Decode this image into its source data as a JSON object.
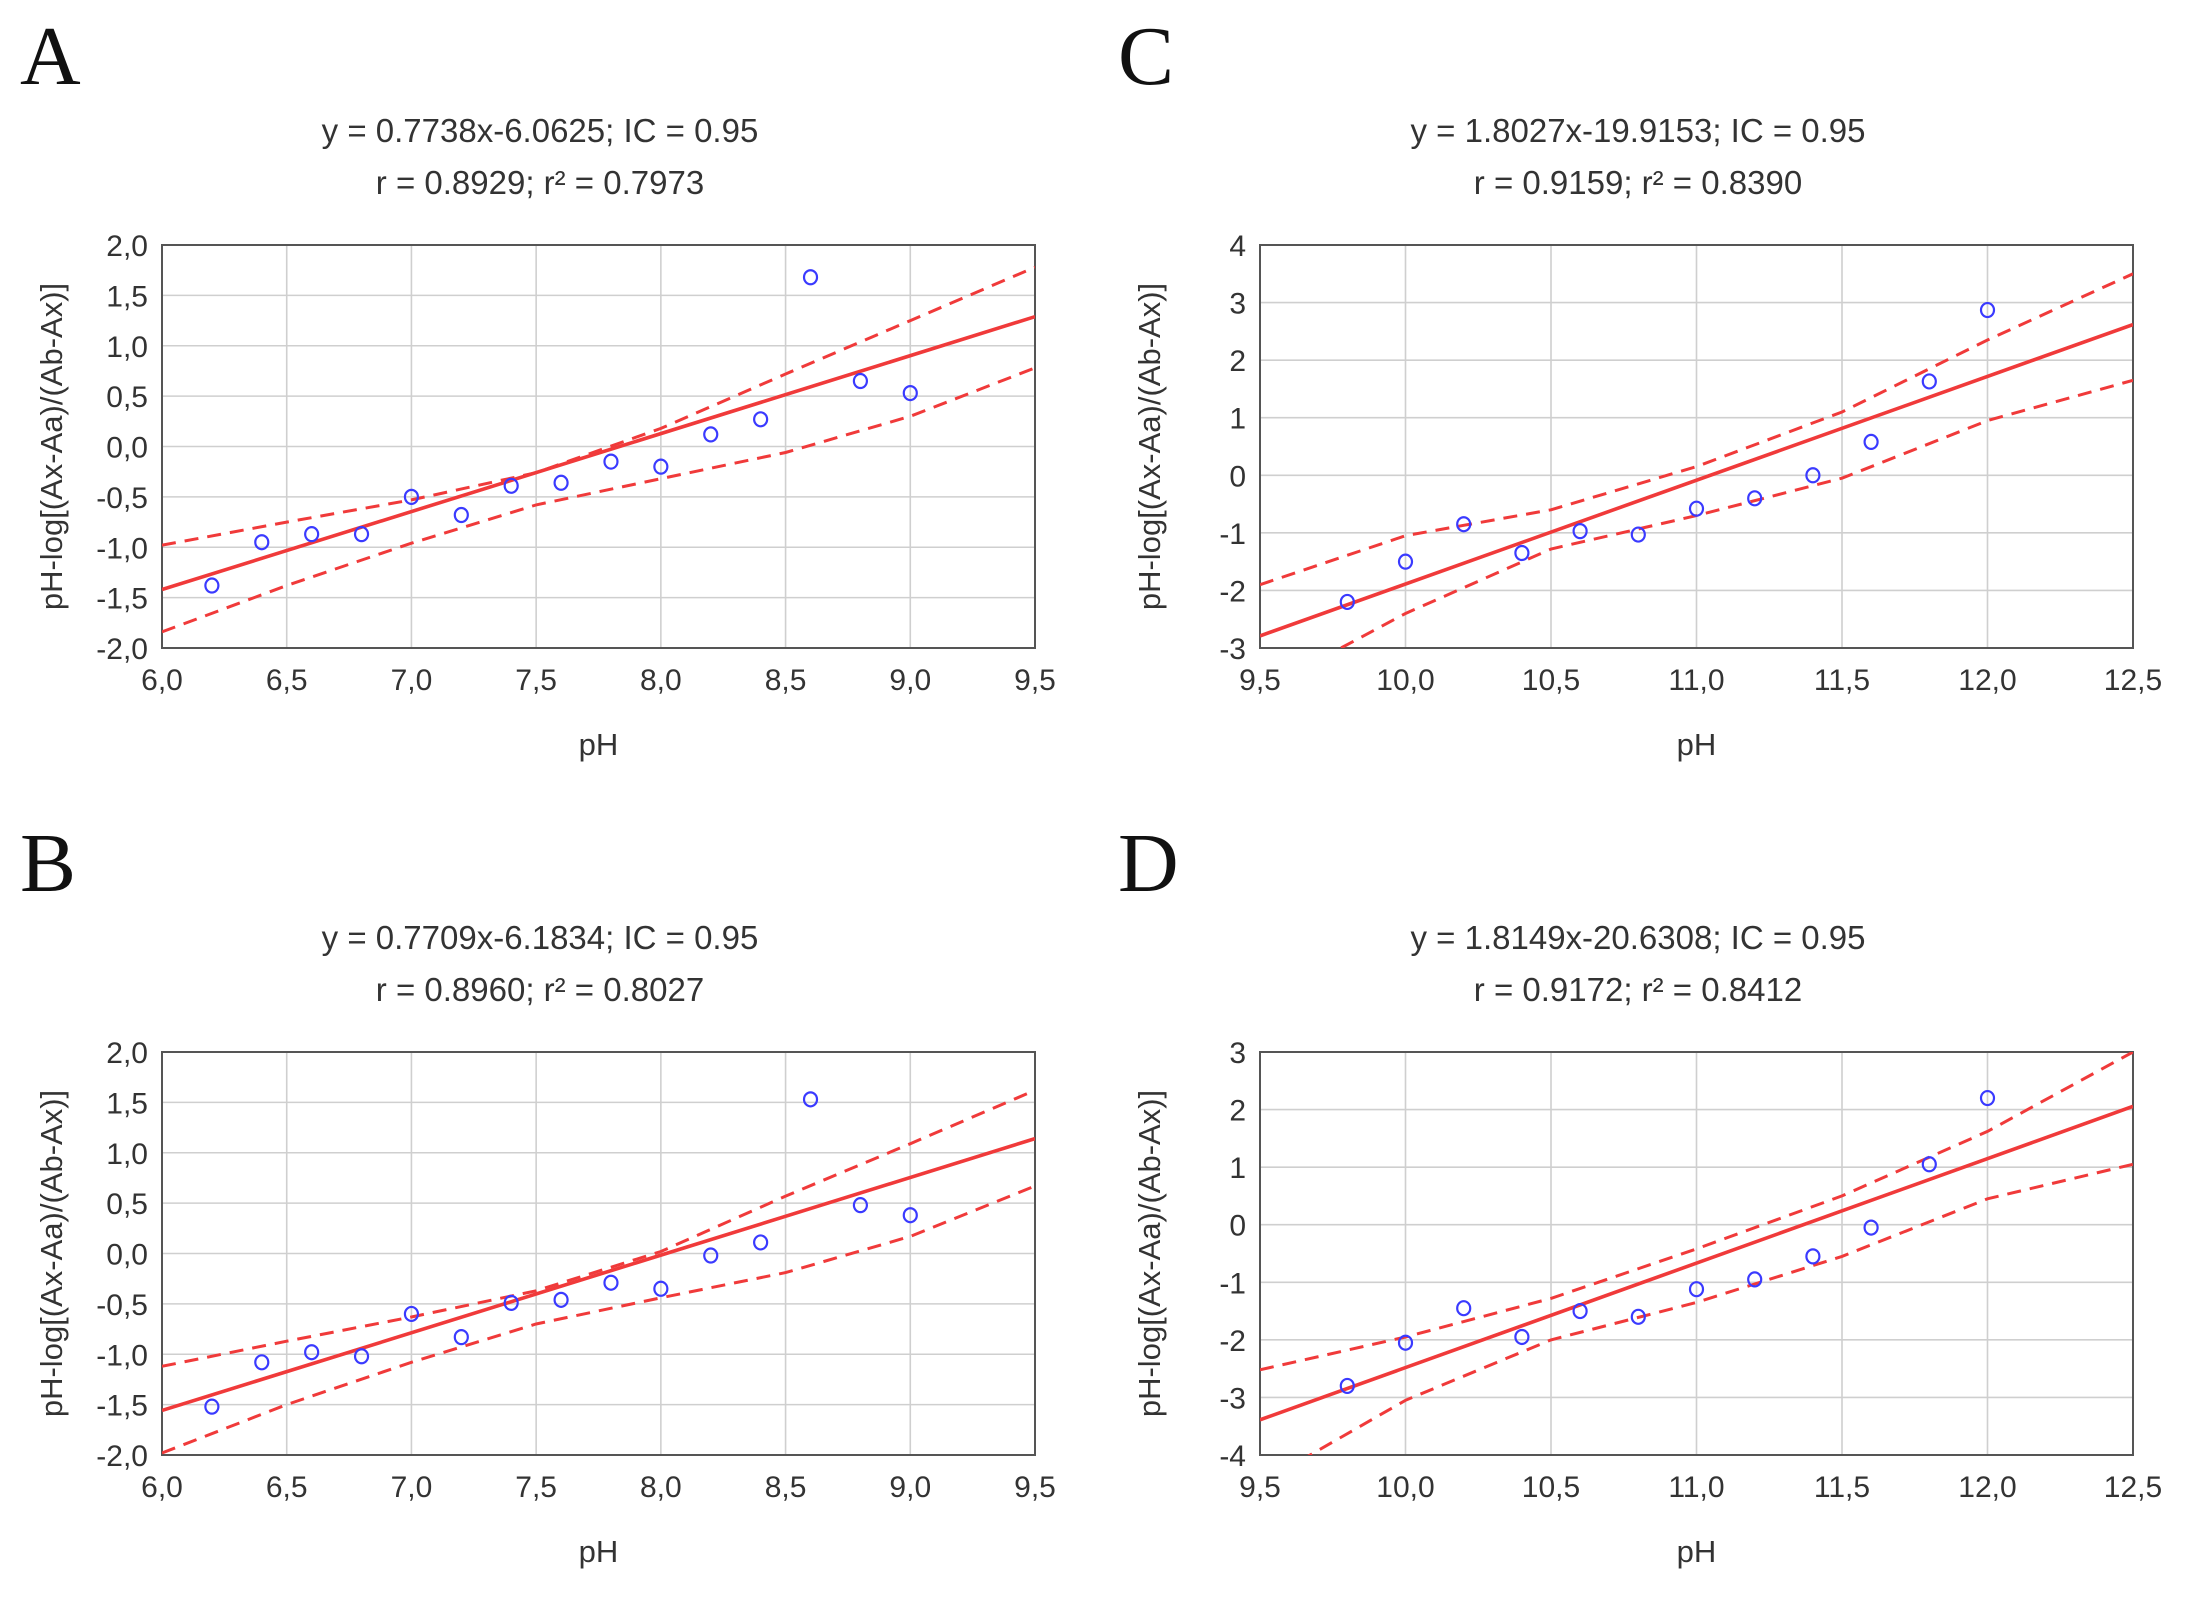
{
  "chart_data": [
    {
      "panel": "A",
      "type": "scatter",
      "title_line1": "y = 0.7738x-6.0625; IC = 0.95",
      "title_line2": "r = 0.8929; r² = 0.7973",
      "xlabel": "pH",
      "ylabel": "pH-log[(Ax-Aa)/(Ab-Ax)]",
      "xlim": [
        6.0,
        9.5
      ],
      "ylim": [
        -2.0,
        2.0
      ],
      "xticks": [
        "6,0",
        "6,5",
        "7,0",
        "7,5",
        "8,0",
        "8,5",
        "9,0",
        "9,5"
      ],
      "yticks": [
        "2,0",
        "1,5",
        "1,0",
        "0,5",
        "0,0",
        "-0,5",
        "-1,0",
        "-1,5",
        "-2,0"
      ],
      "x": [
        6.2,
        6.4,
        6.6,
        6.8,
        7.0,
        7.2,
        7.4,
        7.6,
        7.8,
        8.0,
        8.2,
        8.4,
        8.6,
        8.8,
        9.0
      ],
      "y": [
        -1.38,
        -0.95,
        -0.87,
        -0.87,
        -0.5,
        -0.68,
        -0.39,
        -0.36,
        -0.15,
        -0.2,
        0.12,
        0.27,
        1.68,
        0.65,
        0.53
      ],
      "fit": {
        "slope": 0.7738,
        "intercept": -6.0625
      },
      "ci_upper": [
        [
          6.0,
          -0.98
        ],
        [
          6.5,
          -0.75
        ],
        [
          7.0,
          -0.53
        ],
        [
          7.5,
          -0.26
        ],
        [
          8.0,
          0.18
        ],
        [
          8.5,
          0.72
        ],
        [
          9.0,
          1.25
        ],
        [
          9.5,
          1.78
        ]
      ],
      "ci_lower": [
        [
          6.0,
          -1.84
        ],
        [
          6.5,
          -1.38
        ],
        [
          7.0,
          -0.96
        ],
        [
          7.5,
          -0.58
        ],
        [
          8.0,
          -0.32
        ],
        [
          8.5,
          -0.06
        ],
        [
          9.0,
          0.3
        ],
        [
          9.5,
          0.78
        ]
      ]
    },
    {
      "panel": "C",
      "type": "scatter",
      "title_line1": "y = 1.8027x-19.9153; IC = 0.95",
      "title_line2": "r = 0.9159; r² = 0.8390",
      "xlabel": "pH",
      "ylabel": "pH-log[(Ax-Aa)/(Ab-Ax)]",
      "xlim": [
        9.5,
        12.5
      ],
      "ylim": [
        -3,
        4
      ],
      "xticks": [
        "9,5",
        "10,0",
        "10,5",
        "11,0",
        "11,5",
        "12,0",
        "12,5"
      ],
      "yticks": [
        "4",
        "3",
        "2",
        "1",
        "0",
        "-1",
        "-2",
        "-3"
      ],
      "x": [
        9.8,
        10.0,
        10.2,
        10.4,
        10.6,
        10.8,
        11.0,
        11.2,
        11.4,
        11.6,
        11.8,
        12.0
      ],
      "y": [
        -2.2,
        -1.5,
        -0.85,
        -1.35,
        -0.97,
        -1.03,
        -0.58,
        -0.4,
        0.0,
        0.58,
        1.63,
        2.87
      ],
      "fit": {
        "slope": 1.8027,
        "intercept": -19.9153
      },
      "ci_upper": [
        [
          9.5,
          -1.9
        ],
        [
          10.0,
          -1.05
        ],
        [
          10.5,
          -0.6
        ],
        [
          11.0,
          0.15
        ],
        [
          11.5,
          1.1
        ],
        [
          12.0,
          2.35
        ],
        [
          12.5,
          3.5
        ]
      ],
      "ci_lower": [
        [
          9.5,
          -3.75
        ],
        [
          10.0,
          -2.4
        ],
        [
          10.5,
          -1.28
        ],
        [
          11.0,
          -0.7
        ],
        [
          11.5,
          -0.05
        ],
        [
          12.0,
          0.95
        ],
        [
          12.5,
          1.65
        ]
      ]
    },
    {
      "panel": "B",
      "type": "scatter",
      "title_line1": "y = 0.7709x-6.1834; IC = 0.95",
      "title_line2": "r = 0.8960; r² = 0.8027",
      "xlabel": "pH",
      "ylabel": "pH-log[(Ax-Aa)/(Ab-Ax)]",
      "xlim": [
        6.0,
        9.5
      ],
      "ylim": [
        -2.0,
        2.0
      ],
      "xticks": [
        "6,0",
        "6,5",
        "7,0",
        "7,5",
        "8,0",
        "8,5",
        "9,0",
        "9,5"
      ],
      "yticks": [
        "2,0",
        "1,5",
        "1,0",
        "0,5",
        "0,0",
        "-0,5",
        "-1,0",
        "-1,5",
        "-2,0"
      ],
      "x": [
        6.2,
        6.4,
        6.6,
        6.8,
        7.0,
        7.2,
        7.4,
        7.6,
        7.8,
        8.0,
        8.2,
        8.4,
        8.6,
        8.8,
        9.0
      ],
      "y": [
        -1.52,
        -1.08,
        -0.98,
        -1.02,
        -0.6,
        -0.83,
        -0.49,
        -0.46,
        -0.29,
        -0.35,
        -0.02,
        0.11,
        1.53,
        0.48,
        0.38
      ],
      "fit": {
        "slope": 0.7709,
        "intercept": -6.1834
      },
      "ci_upper": [
        [
          6.0,
          -1.12
        ],
        [
          6.5,
          -0.87
        ],
        [
          7.0,
          -0.63
        ],
        [
          7.5,
          -0.37
        ],
        [
          8.0,
          0.02
        ],
        [
          8.5,
          0.57
        ],
        [
          9.0,
          1.09
        ],
        [
          9.5,
          1.62
        ]
      ],
      "ci_lower": [
        [
          6.0,
          -1.98
        ],
        [
          6.5,
          -1.5
        ],
        [
          7.0,
          -1.08
        ],
        [
          7.5,
          -0.7
        ],
        [
          8.0,
          -0.44
        ],
        [
          8.5,
          -0.19
        ],
        [
          9.0,
          0.17
        ],
        [
          9.5,
          0.67
        ]
      ]
    },
    {
      "panel": "D",
      "type": "scatter",
      "title_line1": "y = 1.8149x-20.6308; IC = 0.95",
      "title_line2": "r = 0.9172; r² = 0.8412",
      "xlabel": "pH",
      "ylabel": "pH-log[(Ax-Aa)/(Ab-Ax)]",
      "xlim": [
        9.5,
        12.5
      ],
      "ylim": [
        -4,
        3
      ],
      "xticks": [
        "9,5",
        "10,0",
        "10,5",
        "11,0",
        "11,5",
        "12,0",
        "12,5"
      ],
      "yticks": [
        "3",
        "2",
        "1",
        "0",
        "-1",
        "-2",
        "-3",
        "-4"
      ],
      "x": [
        9.8,
        10.0,
        10.2,
        10.4,
        10.6,
        10.8,
        11.0,
        11.2,
        11.4,
        11.6,
        11.8,
        12.0
      ],
      "y": [
        -2.8,
        -2.05,
        -1.45,
        -1.95,
        -1.5,
        -1.6,
        -1.12,
        -0.95,
        -0.55,
        -0.05,
        1.05,
        2.2
      ],
      "fit": {
        "slope": 1.8149,
        "intercept": -20.6308
      },
      "ci_upper": [
        [
          9.5,
          -2.52
        ],
        [
          10.0,
          -1.95
        ],
        [
          10.5,
          -1.28
        ],
        [
          11.0,
          -0.42
        ],
        [
          11.5,
          0.5
        ],
        [
          12.0,
          1.62
        ],
        [
          12.5,
          3.0
        ]
      ],
      "ci_lower": [
        [
          9.5,
          -4.5
        ],
        [
          10.0,
          -3.05
        ],
        [
          10.5,
          -2.0
        ],
        [
          11.0,
          -1.35
        ],
        [
          11.5,
          -0.55
        ],
        [
          12.0,
          0.45
        ],
        [
          12.5,
          1.05
        ]
      ]
    }
  ]
}
